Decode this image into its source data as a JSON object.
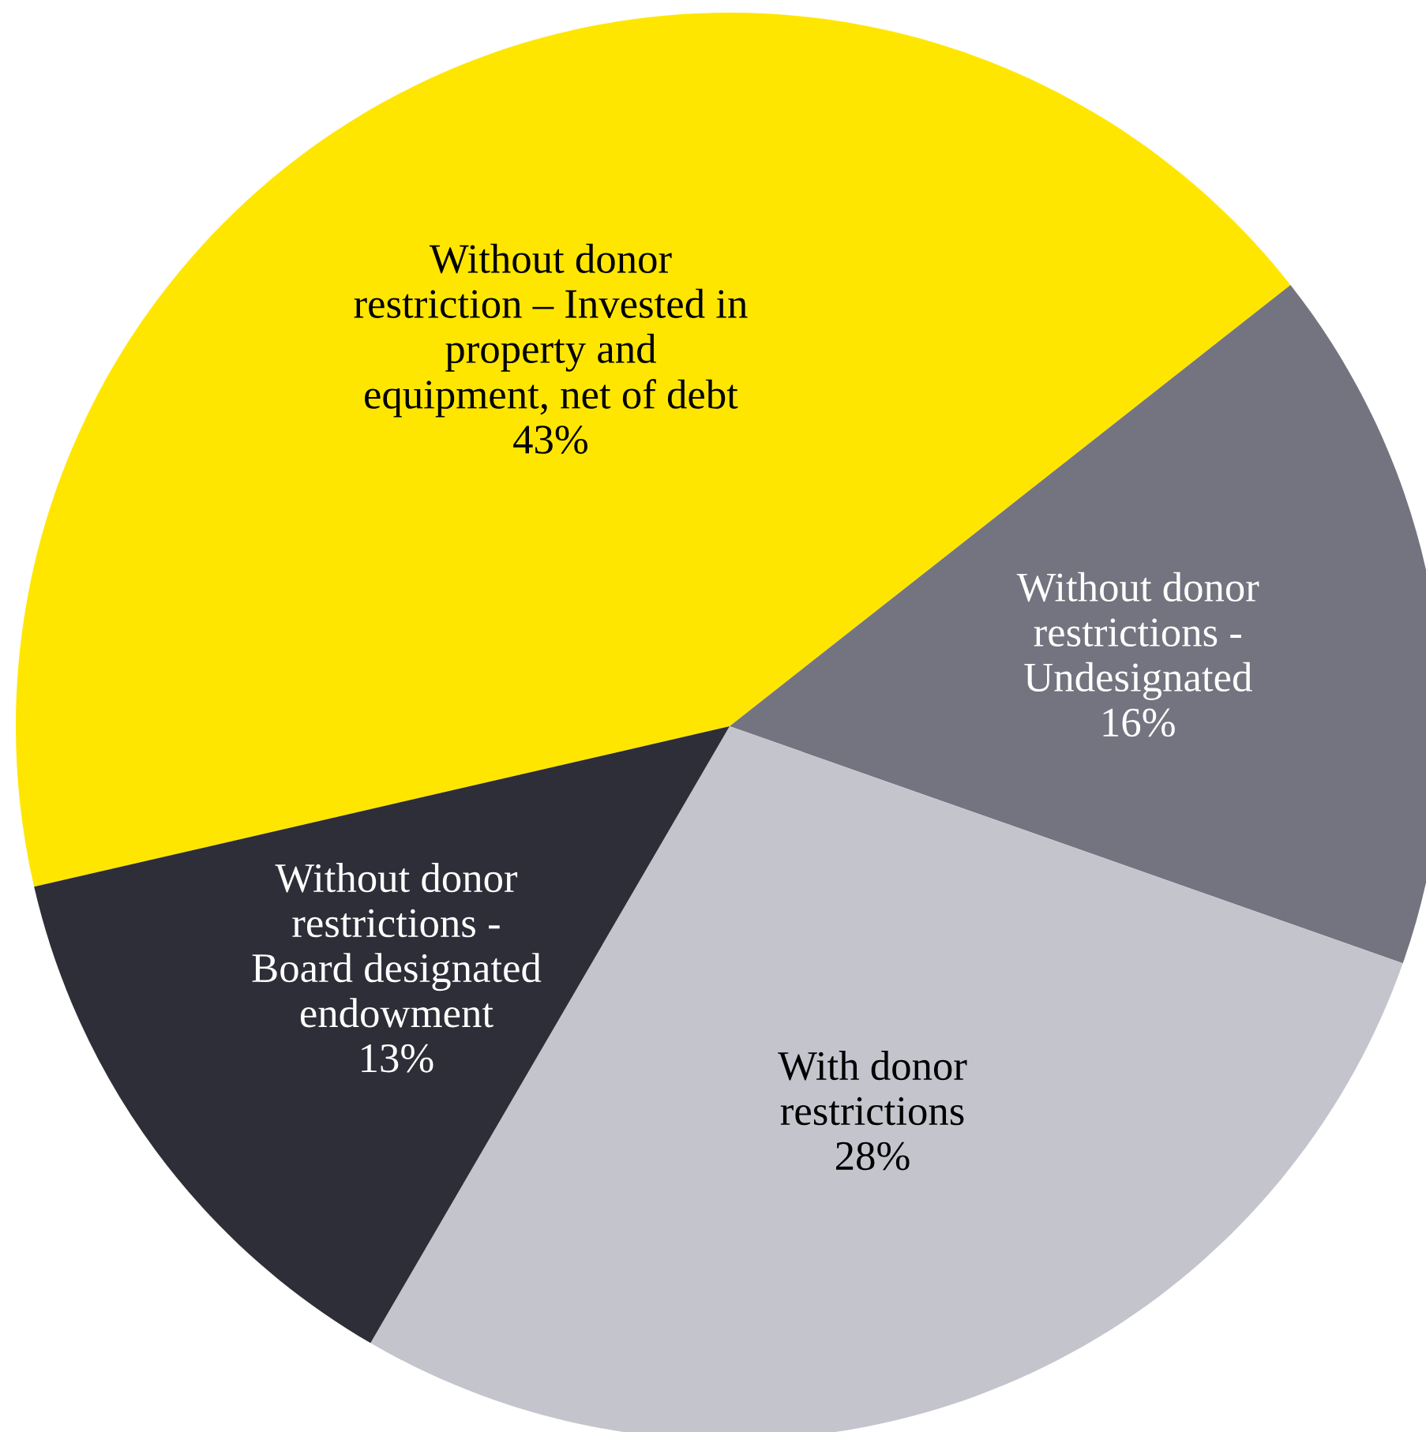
{
  "chart_data": {
    "type": "pie",
    "categories": [
      "Without donor\nrestriction – Invested in\nproperty and\nequipment, net of debt",
      "Without donor\nrestrictions -\nUndesignated",
      "With donor\nrestrictions",
      "Without donor\nrestrictions -\nBoard designated\nendowment"
    ],
    "values": [
      43,
      16,
      28,
      13
    ],
    "colors": [
      "#ffe600",
      "#747480",
      "#c4c4cd",
      "#2e2e38"
    ],
    "value_labels": [
      "43%",
      "16%",
      "28%",
      "13%"
    ],
    "legend": false
  }
}
